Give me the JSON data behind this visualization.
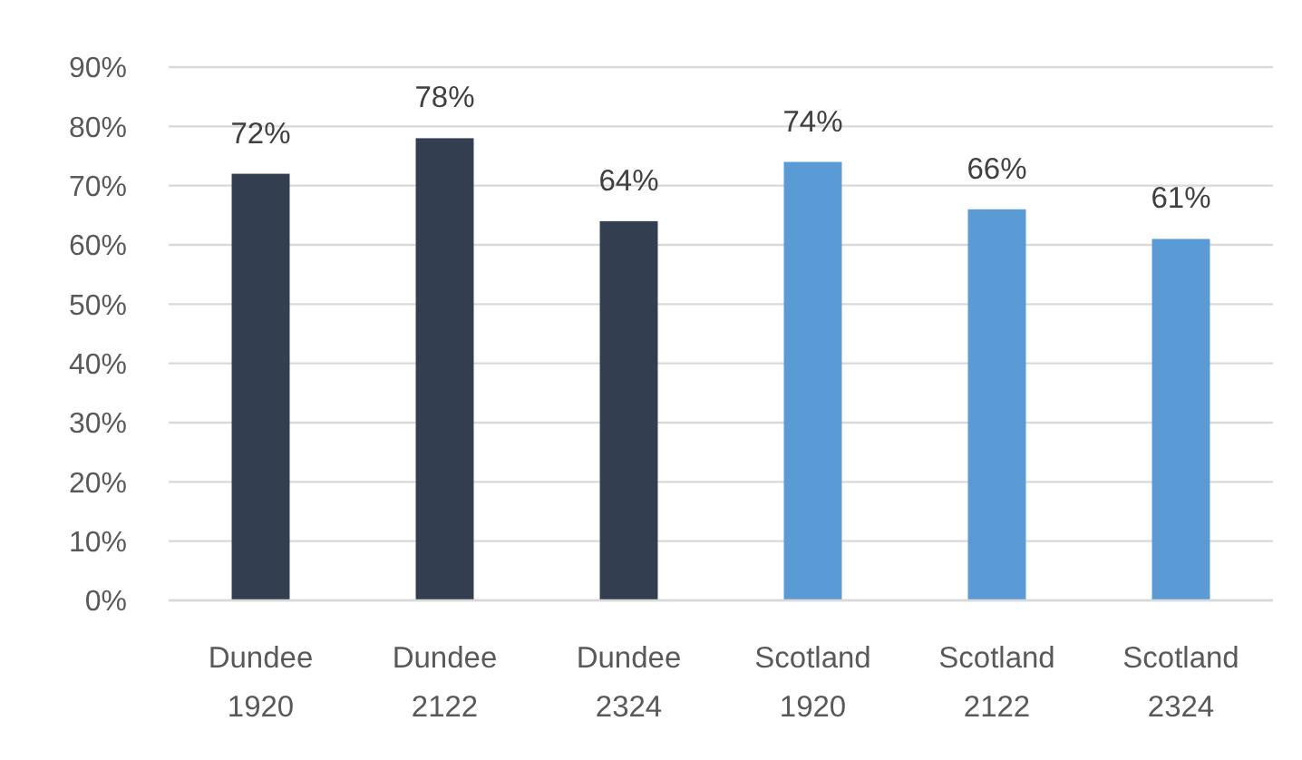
{
  "chart_data": {
    "type": "bar",
    "categories": [
      "Dundee 1920",
      "Dundee 2122",
      "Dundee 2324",
      "Scotland 1920",
      "Scotland 2122",
      "Scotland 2324"
    ],
    "values": [
      72,
      78,
      64,
      74,
      66,
      61
    ],
    "colors": [
      "#333f50",
      "#333f50",
      "#333f50",
      "#5b9bd5",
      "#5b9bd5",
      "#5b9bd5"
    ],
    "value_labels": [
      "72%",
      "78%",
      "64%",
      "74%",
      "66%",
      "61%"
    ],
    "ylim": [
      0,
      90
    ],
    "yticks": [
      {
        "value": 0,
        "label": "0%"
      },
      {
        "value": 10,
        "label": "10%"
      },
      {
        "value": 20,
        "label": "20%"
      },
      {
        "value": 30,
        "label": "30%"
      },
      {
        "value": 40,
        "label": "40%"
      },
      {
        "value": 50,
        "label": "50%"
      },
      {
        "value": 60,
        "label": "60%"
      },
      {
        "value": 70,
        "label": "70%"
      },
      {
        "value": 80,
        "label": "80%"
      },
      {
        "value": 90,
        "label": "90%"
      }
    ],
    "grid": "y"
  }
}
